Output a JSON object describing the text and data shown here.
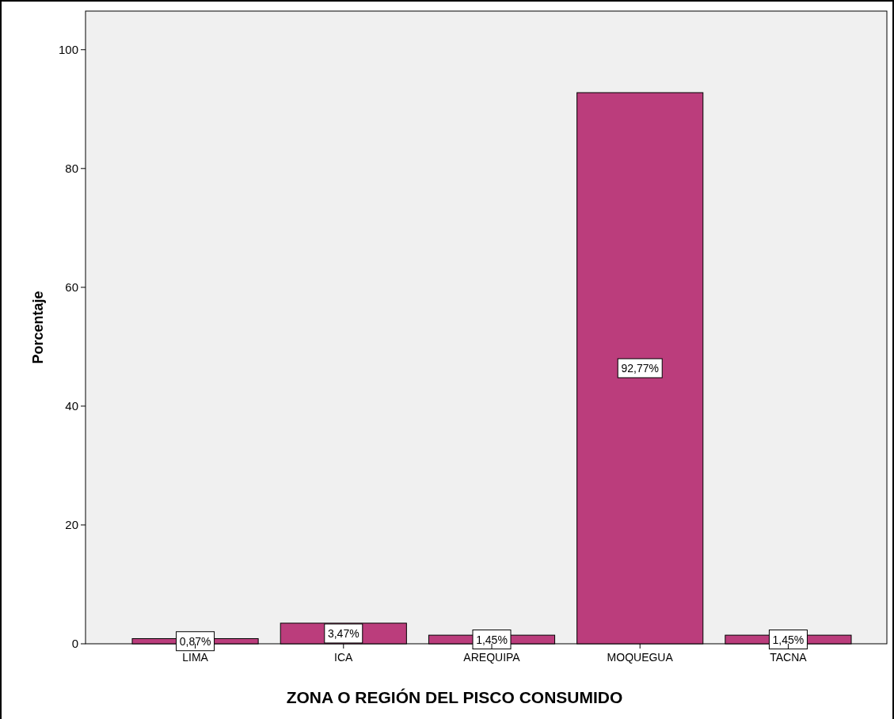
{
  "chart_data": {
    "type": "bar",
    "xlabel": "ZONA O REGIÓN DEL PISCO CONSUMIDO",
    "ylabel": "Porcentaje",
    "categories": [
      "LIMA",
      "ICA",
      "AREQUIPA",
      "MOQUEGUA",
      "TACNA"
    ],
    "values": [
      0.87,
      3.47,
      1.45,
      92.77,
      1.45
    ],
    "value_labels": [
      "0,87%",
      "3,47%",
      "1,45%",
      "92,77%",
      "1,45%"
    ],
    "color": "#bb3d7c",
    "ylim": [
      0,
      106.5
    ],
    "yticks": [
      0,
      20,
      40,
      60,
      80,
      100
    ],
    "grid": false
  }
}
